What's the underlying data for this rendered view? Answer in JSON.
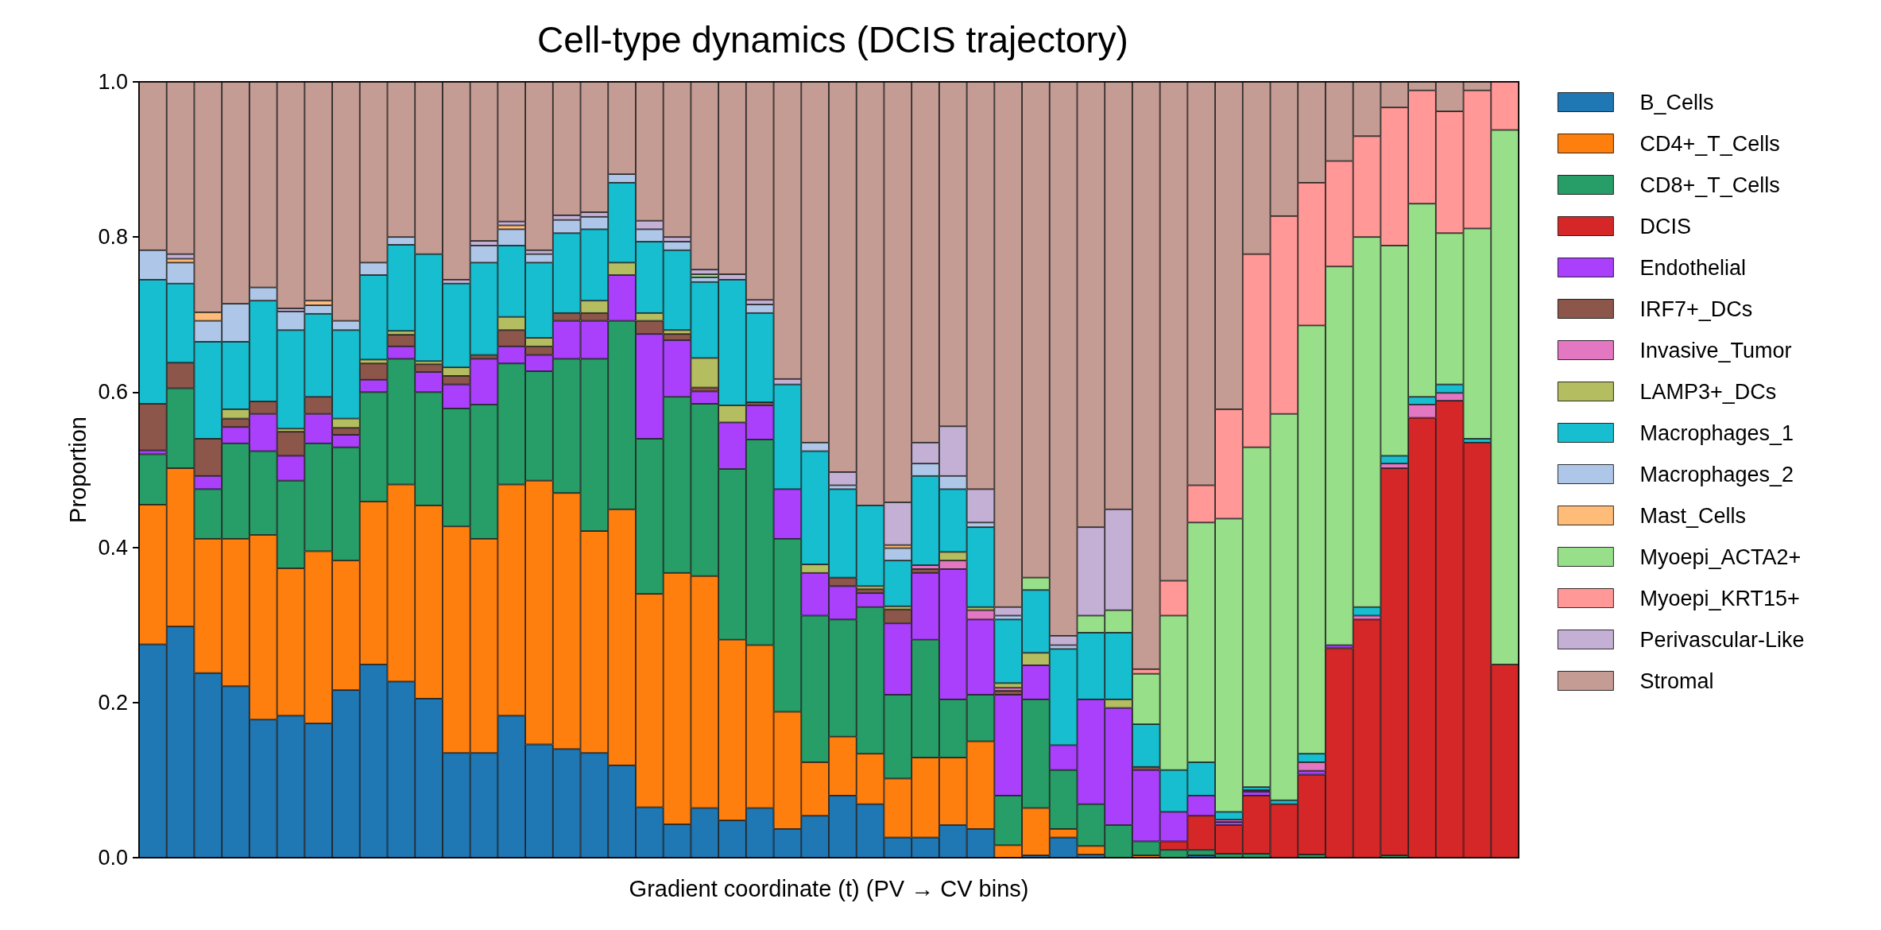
{
  "chart_data": {
    "type": "bar",
    "title": "Cell-type dynamics (DCIS trajectory)",
    "xlabel": "Gradient coordinate (t) (PV → CV bins)",
    "ylabel": "Proportion",
    "categories": [
      null,
      null,
      null,
      null,
      null,
      null,
      null,
      null,
      null,
      null,
      null,
      null,
      null,
      null,
      null,
      null,
      null,
      null,
      null,
      null,
      null,
      null,
      null,
      null,
      null,
      null,
      null,
      null,
      null,
      null,
      null,
      null,
      null,
      null,
      null,
      null,
      null,
      null,
      null,
      null,
      null,
      null,
      null,
      null,
      null,
      null,
      null,
      null,
      null,
      null
    ],
    "stacked": true,
    "legend": "right",
    "grid": false,
    "ylim": [
      0,
      1
    ],
    "yticks": [
      {
        "value": 0,
        "label": "0.0"
      },
      {
        "value": 0.2,
        "label": "0.2"
      },
      {
        "value": 0.4,
        "label": "0.4"
      },
      {
        "value": 0.6,
        "label": "0.6"
      },
      {
        "value": 0.8,
        "label": "0.8"
      },
      {
        "value": 1,
        "label": "1.0"
      }
    ],
    "series": [
      {
        "name": "B_Cells",
        "color": "#1f77b4",
        "values": [
          0.275,
          0.298,
          0.238,
          0.221,
          0.178,
          0.183,
          0.173,
          0.216,
          0.249,
          0.227,
          0.205,
          0.135,
          0.135,
          0.183,
          0.146,
          0.14,
          0.135,
          0.119,
          0.065,
          0.043,
          0.064,
          0.048,
          0.064,
          0.037,
          0.054,
          0.08,
          0.069,
          0.026,
          0.026,
          0.042,
          0.037,
          null,
          0.003,
          0.026,
          0.004,
          null,
          null,
          null,
          0.003,
          null,
          null,
          null,
          null,
          null,
          null,
          null,
          null,
          null,
          null,
          null
        ]
      },
      {
        "name": "CD4+_T_Cells",
        "color": "#ff7f0e",
        "values": [
          0.18,
          0.204,
          0.173,
          0.19,
          0.238,
          0.19,
          0.222,
          0.167,
          0.21,
          0.254,
          0.249,
          0.292,
          0.276,
          0.298,
          0.34,
          0.33,
          0.286,
          0.33,
          0.275,
          0.324,
          0.299,
          0.233,
          0.21,
          0.151,
          0.069,
          0.076,
          0.065,
          0.076,
          0.103,
          0.087,
          0.113,
          0.016,
          0.061,
          0.011,
          0.011,
          null,
          0.003,
          null,
          null,
          null,
          null,
          null,
          null,
          null,
          null,
          null,
          null,
          null,
          null,
          null
        ]
      },
      {
        "name": "CD8+_T_Cells",
        "color": "#279e68",
        "values": [
          0.065,
          0.103,
          0.064,
          0.123,
          0.108,
          0.113,
          0.139,
          0.146,
          0.141,
          0.162,
          0.146,
          0.152,
          0.173,
          0.156,
          0.141,
          0.173,
          0.222,
          0.243,
          0.2,
          0.227,
          0.222,
          0.22,
          0.265,
          0.223,
          0.189,
          0.151,
          0.189,
          0.108,
          0.152,
          0.075,
          0.06,
          0.064,
          0.14,
          0.076,
          0.054,
          0.042,
          0.018,
          0.01,
          0.007,
          0.005,
          0.005,
          null,
          0.004,
          null,
          null,
          0.003,
          null,
          null,
          null,
          null
        ]
      },
      {
        "name": "DCIS",
        "color": "#d62728",
        "values": [
          null,
          null,
          null,
          null,
          null,
          null,
          null,
          null,
          null,
          null,
          null,
          null,
          null,
          null,
          null,
          null,
          null,
          null,
          null,
          null,
          null,
          null,
          null,
          null,
          null,
          null,
          null,
          null,
          null,
          null,
          null,
          null,
          null,
          null,
          null,
          null,
          null,
          0.011,
          0.044,
          0.037,
          0.075,
          0.069,
          0.103,
          0.27,
          0.307,
          0.499,
          0.567,
          0.589,
          0.535,
          0.249
        ]
      },
      {
        "name": "Endothelial",
        "color": "#aa40fc",
        "values": [
          0.005,
          null,
          0.017,
          0.021,
          0.048,
          0.032,
          0.038,
          0.016,
          0.016,
          0.016,
          0.026,
          0.031,
          0.059,
          0.022,
          0.021,
          0.049,
          0.049,
          0.059,
          0.135,
          0.073,
          0.016,
          0.06,
          0.044,
          0.064,
          0.055,
          0.043,
          0.018,
          0.092,
          0.086,
          0.168,
          0.097,
          0.13,
          0.044,
          0.032,
          0.135,
          0.151,
          0.092,
          0.038,
          0.026,
          0.004,
          0.005,
          null,
          0.005,
          0.004,
          null,
          null,
          null,
          null,
          null,
          null
        ]
      },
      {
        "name": "IRF7+_DCs",
        "color": "#8c564b",
        "values": [
          0.06,
          0.033,
          0.048,
          0.011,
          0.016,
          0.031,
          0.022,
          0.009,
          0.021,
          0.015,
          0.01,
          0.011,
          0.005,
          0.021,
          0.011,
          0.01,
          0.01,
          null,
          0.017,
          0.008,
          0.005,
          null,
          0.004,
          null,
          null,
          0.011,
          0.005,
          0.018,
          0.005,
          null,
          null,
          0.005,
          null,
          null,
          null,
          null,
          0.004,
          null,
          null,
          null,
          null,
          null,
          null,
          null,
          null,
          null,
          null,
          null,
          null,
          null
        ]
      },
      {
        "name": "Invasive_Tumor",
        "color": "#e377c2",
        "values": [
          null,
          null,
          null,
          null,
          null,
          null,
          null,
          null,
          null,
          null,
          null,
          null,
          null,
          null,
          null,
          null,
          null,
          null,
          null,
          null,
          null,
          null,
          null,
          null,
          null,
          null,
          null,
          null,
          0.005,
          0.011,
          0.012,
          0.004,
          null,
          null,
          null,
          null,
          null,
          null,
          null,
          0.003,
          0.002,
          null,
          0.011,
          null,
          0.005,
          0.006,
          0.017,
          0.01,
          null,
          null
        ]
      },
      {
        "name": "LAMP3+_DCs",
        "color": "#b5bd61",
        "values": [
          null,
          null,
          null,
          0.012,
          null,
          0.004,
          null,
          0.012,
          0.005,
          0.005,
          0.004,
          0.011,
          null,
          0.017,
          0.011,
          null,
          0.016,
          0.016,
          0.01,
          0.005,
          0.038,
          0.022,
          null,
          null,
          0.011,
          null,
          0.004,
          0.004,
          null,
          0.011,
          0.004,
          0.006,
          0.016,
          null,
          null,
          0.011,
          null,
          null,
          null,
          null,
          null,
          null,
          null,
          null,
          null,
          null,
          null,
          null,
          null,
          null
        ]
      },
      {
        "name": "Macrophages_1",
        "color": "#17becf",
        "values": [
          0.16,
          0.102,
          0.125,
          0.087,
          0.13,
          0.127,
          0.107,
          0.114,
          0.109,
          0.111,
          0.138,
          0.108,
          0.119,
          0.092,
          0.097,
          0.103,
          0.092,
          0.103,
          0.092,
          0.103,
          0.098,
          0.162,
          0.115,
          0.135,
          0.146,
          0.114,
          0.104,
          0.059,
          0.115,
          0.081,
          0.103,
          0.082,
          0.081,
          0.124,
          0.086,
          0.086,
          0.055,
          0.054,
          0.043,
          0.01,
          0.004,
          0.005,
          0.011,
          null,
          0.011,
          0.01,
          0.01,
          0.011,
          0.005,
          null
        ]
      },
      {
        "name": "Macrophages_2",
        "color": "#aec7e8",
        "values": [
          0.038,
          0.027,
          0.027,
          0.049,
          0.017,
          0.024,
          0.011,
          0.012,
          0.016,
          0.01,
          null,
          null,
          0.022,
          0.021,
          0.011,
          0.017,
          0.016,
          0.011,
          0.016,
          0.011,
          0.006,
          null,
          0.011,
          null,
          0.011,
          0.005,
          null,
          0.016,
          0.016,
          0.017,
          0.006,
          0.005,
          null,
          0.005,
          null,
          null,
          null,
          null,
          null,
          null,
          null,
          null,
          null,
          null,
          null,
          null,
          null,
          null,
          null,
          null
        ]
      },
      {
        "name": "Mast_Cells",
        "color": "#ffbb78",
        "values": [
          null,
          0.005,
          0.011,
          null,
          null,
          null,
          0.006,
          null,
          null,
          null,
          null,
          null,
          null,
          0.005,
          null,
          null,
          null,
          null,
          null,
          null,
          null,
          null,
          null,
          null,
          null,
          null,
          null,
          0.004,
          null,
          null,
          null,
          null,
          null,
          null,
          null,
          null,
          null,
          null,
          null,
          null,
          null,
          null,
          null,
          null,
          null,
          null,
          null,
          null,
          null,
          null
        ]
      },
      {
        "name": "Myoepi_ACTA2+",
        "color": "#98df8a",
        "values": [
          null,
          null,
          null,
          null,
          null,
          null,
          null,
          null,
          null,
          null,
          null,
          null,
          null,
          null,
          null,
          null,
          null,
          null,
          null,
          null,
          0.004,
          null,
          null,
          null,
          null,
          null,
          null,
          null,
          null,
          null,
          null,
          null,
          0.016,
          null,
          0.022,
          0.029,
          0.065,
          0.199,
          0.309,
          0.378,
          0.438,
          0.498,
          0.552,
          0.488,
          0.477,
          0.271,
          0.249,
          0.195,
          0.271,
          0.689
        ]
      },
      {
        "name": "Myoepi_KRT15+",
        "color": "#ff9896",
        "values": [
          null,
          null,
          null,
          null,
          null,
          null,
          null,
          null,
          null,
          null,
          null,
          null,
          null,
          null,
          null,
          null,
          null,
          null,
          null,
          null,
          null,
          null,
          null,
          null,
          null,
          null,
          null,
          null,
          null,
          null,
          null,
          null,
          null,
          null,
          null,
          null,
          0.006,
          0.045,
          0.048,
          0.141,
          0.249,
          0.255,
          0.184,
          0.136,
          0.13,
          0.178,
          0.146,
          0.157,
          0.178,
          0.062
        ]
      },
      {
        "name": "Perivascular-Like",
        "color": "#c5b0d5",
        "values": [
          null,
          0.006,
          null,
          null,
          null,
          0.004,
          null,
          null,
          null,
          null,
          null,
          0.005,
          0.006,
          0.005,
          0.005,
          0.006,
          0.006,
          null,
          0.011,
          0.006,
          0.006,
          0.007,
          0.006,
          0.007,
          null,
          0.017,
          null,
          0.055,
          0.027,
          0.064,
          0.043,
          0.011,
          null,
          0.012,
          0.114,
          0.13,
          null,
          null,
          null,
          null,
          null,
          null,
          null,
          null,
          null,
          null,
          null,
          null,
          null,
          null
        ]
      },
      {
        "name": "Stromal",
        "color": "#c49c94",
        "values": [
          0.217,
          0.222,
          0.297,
          0.286,
          0.265,
          0.292,
          0.282,
          0.308,
          0.233,
          0.2,
          0.222,
          0.255,
          0.205,
          0.18,
          0.217,
          0.172,
          0.168,
          0.119,
          0.179,
          0.2,
          0.242,
          0.248,
          0.281,
          0.383,
          0.465,
          0.503,
          0.546,
          0.542,
          0.465,
          0.444,
          0.525,
          0.677,
          0.639,
          0.714,
          0.574,
          0.551,
          0.757,
          0.643,
          0.52,
          0.422,
          0.222,
          0.173,
          0.13,
          0.102,
          0.07,
          0.033,
          0.011,
          0.038,
          0.011,
          null
        ]
      }
    ]
  }
}
